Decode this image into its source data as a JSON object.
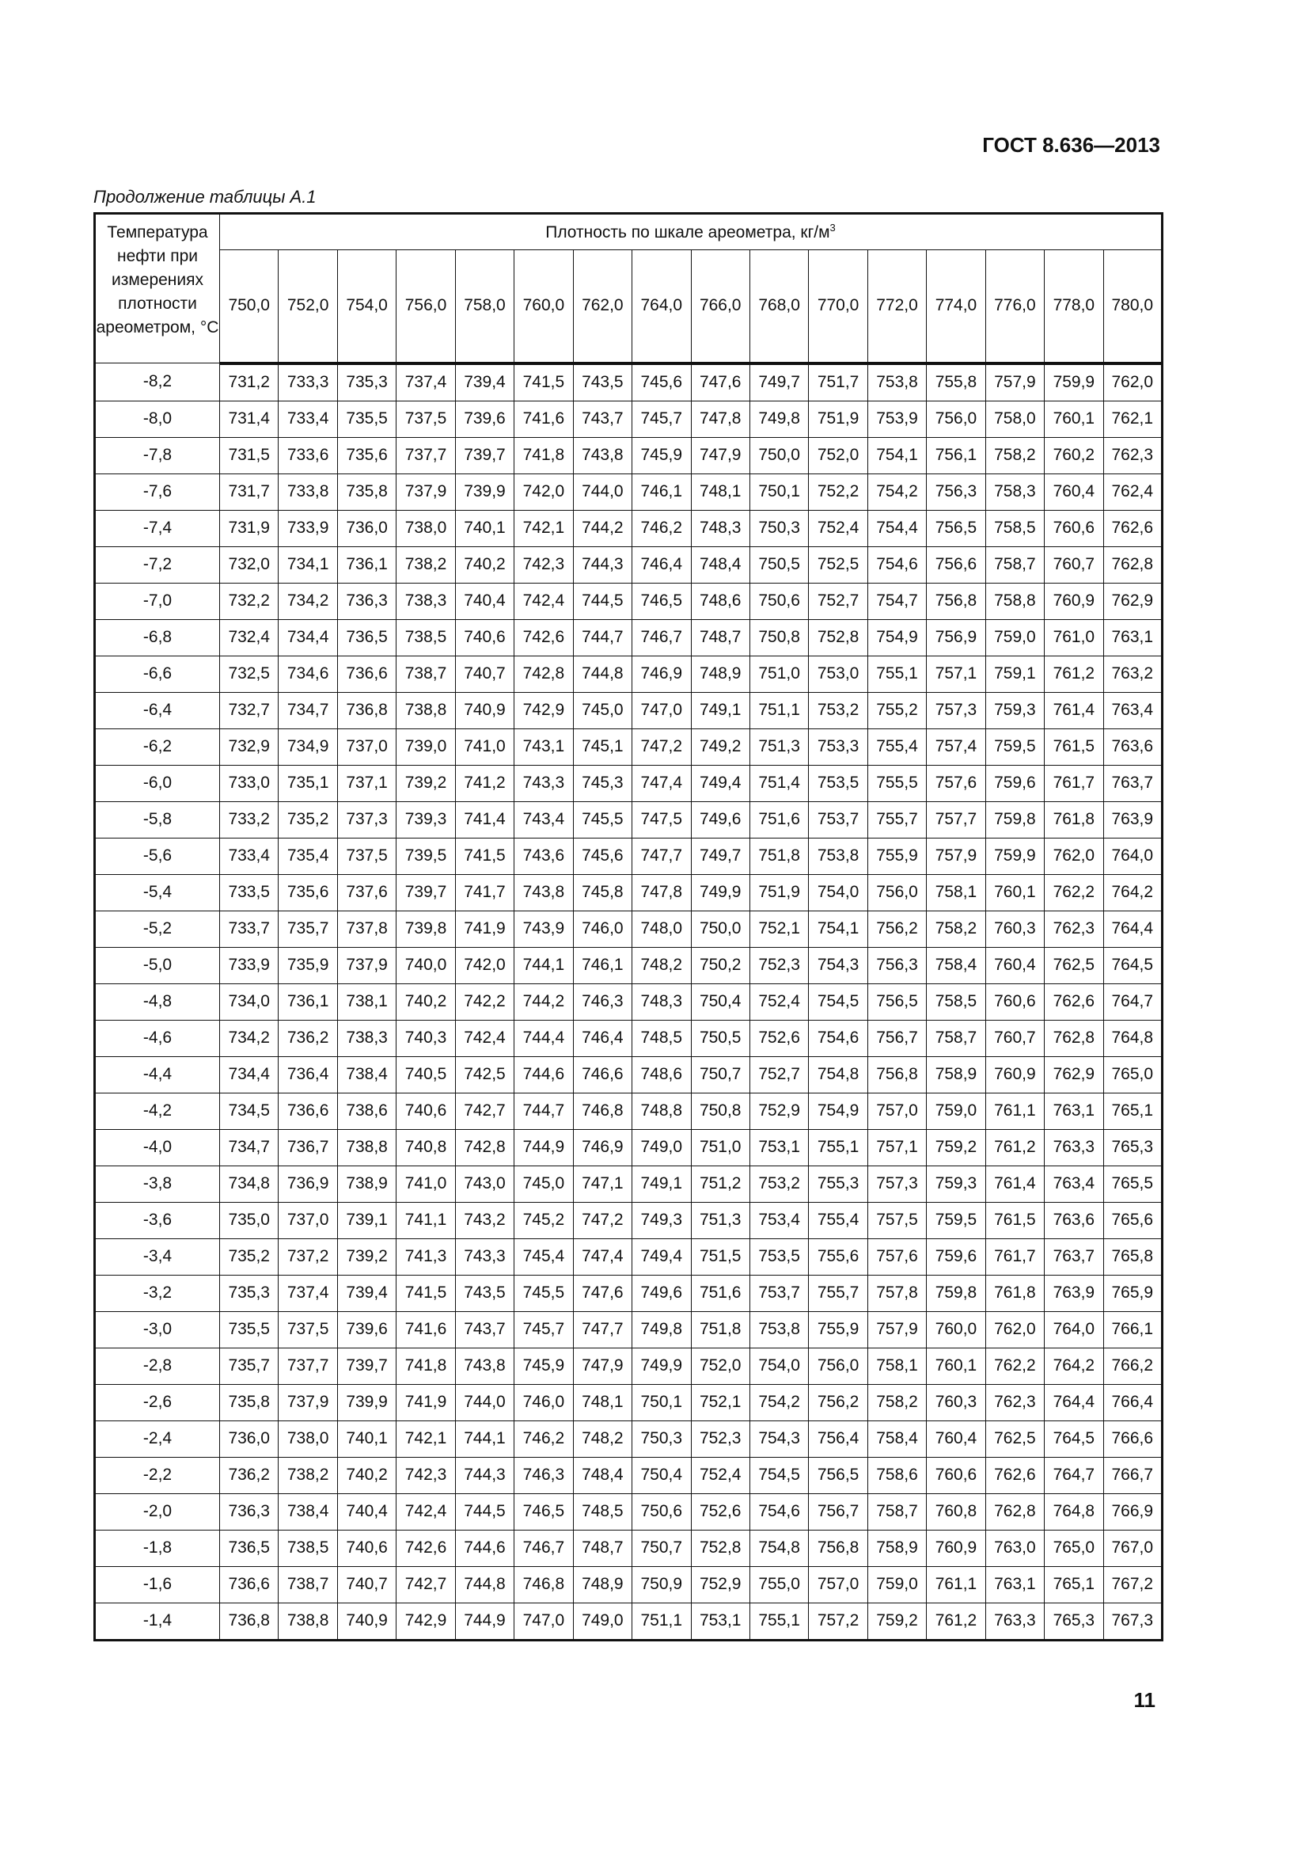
{
  "header": {
    "doc_code": "ГОСТ 8.636—2013"
  },
  "caption": "Продолжение таблицы А.1",
  "table": {
    "row_header": "Температура нефти при измерениях плотности ареометром, °C",
    "group_header": "Плотность по шкале ареометра, кг/м",
    "group_header_sup": "3",
    "columns": [
      "750,0",
      "752,0",
      "754,0",
      "756,0",
      "758,0",
      "760,0",
      "762,0",
      "764,0",
      "766,0",
      "768,0",
      "770,0",
      "772,0",
      "774,0",
      "776,0",
      "778,0",
      "780,0"
    ],
    "rows": [
      {
        "t": "-8,2",
        "v": [
          "731,2",
          "733,3",
          "735,3",
          "737,4",
          "739,4",
          "741,5",
          "743,5",
          "745,6",
          "747,6",
          "749,7",
          "751,7",
          "753,8",
          "755,8",
          "757,9",
          "759,9",
          "762,0"
        ]
      },
      {
        "t": "-8,0",
        "v": [
          "731,4",
          "733,4",
          "735,5",
          "737,5",
          "739,6",
          "741,6",
          "743,7",
          "745,7",
          "747,8",
          "749,8",
          "751,9",
          "753,9",
          "756,0",
          "758,0",
          "760,1",
          "762,1"
        ]
      },
      {
        "t": "-7,8",
        "v": [
          "731,5",
          "733,6",
          "735,6",
          "737,7",
          "739,7",
          "741,8",
          "743,8",
          "745,9",
          "747,9",
          "750,0",
          "752,0",
          "754,1",
          "756,1",
          "758,2",
          "760,2",
          "762,3"
        ]
      },
      {
        "t": "-7,6",
        "v": [
          "731,7",
          "733,8",
          "735,8",
          "737,9",
          "739,9",
          "742,0",
          "744,0",
          "746,1",
          "748,1",
          "750,1",
          "752,2",
          "754,2",
          "756,3",
          "758,3",
          "760,4",
          "762,4"
        ]
      },
      {
        "t": "-7,4",
        "v": [
          "731,9",
          "733,9",
          "736,0",
          "738,0",
          "740,1",
          "742,1",
          "744,2",
          "746,2",
          "748,3",
          "750,3",
          "752,4",
          "754,4",
          "756,5",
          "758,5",
          "760,6",
          "762,6"
        ]
      },
      {
        "t": "-7,2",
        "v": [
          "732,0",
          "734,1",
          "736,1",
          "738,2",
          "740,2",
          "742,3",
          "744,3",
          "746,4",
          "748,4",
          "750,5",
          "752,5",
          "754,6",
          "756,6",
          "758,7",
          "760,7",
          "762,8"
        ]
      },
      {
        "t": "-7,0",
        "v": [
          "732,2",
          "734,2",
          "736,3",
          "738,3",
          "740,4",
          "742,4",
          "744,5",
          "746,5",
          "748,6",
          "750,6",
          "752,7",
          "754,7",
          "756,8",
          "758,8",
          "760,9",
          "762,9"
        ]
      },
      {
        "t": "-6,8",
        "v": [
          "732,4",
          "734,4",
          "736,5",
          "738,5",
          "740,6",
          "742,6",
          "744,7",
          "746,7",
          "748,7",
          "750,8",
          "752,8",
          "754,9",
          "756,9",
          "759,0",
          "761,0",
          "763,1"
        ]
      },
      {
        "t": "-6,6",
        "v": [
          "732,5",
          "734,6",
          "736,6",
          "738,7",
          "740,7",
          "742,8",
          "744,8",
          "746,9",
          "748,9",
          "751,0",
          "753,0",
          "755,1",
          "757,1",
          "759,1",
          "761,2",
          "763,2"
        ]
      },
      {
        "t": "-6,4",
        "v": [
          "732,7",
          "734,7",
          "736,8",
          "738,8",
          "740,9",
          "742,9",
          "745,0",
          "747,0",
          "749,1",
          "751,1",
          "753,2",
          "755,2",
          "757,3",
          "759,3",
          "761,4",
          "763,4"
        ]
      },
      {
        "t": "-6,2",
        "v": [
          "732,9",
          "734,9",
          "737,0",
          "739,0",
          "741,0",
          "743,1",
          "745,1",
          "747,2",
          "749,2",
          "751,3",
          "753,3",
          "755,4",
          "757,4",
          "759,5",
          "761,5",
          "763,6"
        ]
      },
      {
        "t": "-6,0",
        "v": [
          "733,0",
          "735,1",
          "737,1",
          "739,2",
          "741,2",
          "743,3",
          "745,3",
          "747,4",
          "749,4",
          "751,4",
          "753,5",
          "755,5",
          "757,6",
          "759,6",
          "761,7",
          "763,7"
        ]
      },
      {
        "t": "-5,8",
        "v": [
          "733,2",
          "735,2",
          "737,3",
          "739,3",
          "741,4",
          "743,4",
          "745,5",
          "747,5",
          "749,6",
          "751,6",
          "753,7",
          "755,7",
          "757,7",
          "759,8",
          "761,8",
          "763,9"
        ]
      },
      {
        "t": "-5,6",
        "v": [
          "733,4",
          "735,4",
          "737,5",
          "739,5",
          "741,5",
          "743,6",
          "745,6",
          "747,7",
          "749,7",
          "751,8",
          "753,8",
          "755,9",
          "757,9",
          "759,9",
          "762,0",
          "764,0"
        ]
      },
      {
        "t": "-5,4",
        "v": [
          "733,5",
          "735,6",
          "737,6",
          "739,7",
          "741,7",
          "743,8",
          "745,8",
          "747,8",
          "749,9",
          "751,9",
          "754,0",
          "756,0",
          "758,1",
          "760,1",
          "762,2",
          "764,2"
        ]
      },
      {
        "t": "-5,2",
        "v": [
          "733,7",
          "735,7",
          "737,8",
          "739,8",
          "741,9",
          "743,9",
          "746,0",
          "748,0",
          "750,0",
          "752,1",
          "754,1",
          "756,2",
          "758,2",
          "760,3",
          "762,3",
          "764,4"
        ]
      },
      {
        "t": "-5,0",
        "v": [
          "733,9",
          "735,9",
          "737,9",
          "740,0",
          "742,0",
          "744,1",
          "746,1",
          "748,2",
          "750,2",
          "752,3",
          "754,3",
          "756,3",
          "758,4",
          "760,4",
          "762,5",
          "764,5"
        ]
      },
      {
        "t": "-4,8",
        "v": [
          "734,0",
          "736,1",
          "738,1",
          "740,2",
          "742,2",
          "744,2",
          "746,3",
          "748,3",
          "750,4",
          "752,4",
          "754,5",
          "756,5",
          "758,5",
          "760,6",
          "762,6",
          "764,7"
        ]
      },
      {
        "t": "-4,6",
        "v": [
          "734,2",
          "736,2",
          "738,3",
          "740,3",
          "742,4",
          "744,4",
          "746,4",
          "748,5",
          "750,5",
          "752,6",
          "754,6",
          "756,7",
          "758,7",
          "760,7",
          "762,8",
          "764,8"
        ]
      },
      {
        "t": "-4,4",
        "v": [
          "734,4",
          "736,4",
          "738,4",
          "740,5",
          "742,5",
          "744,6",
          "746,6",
          "748,6",
          "750,7",
          "752,7",
          "754,8",
          "756,8",
          "758,9",
          "760,9",
          "762,9",
          "765,0"
        ]
      },
      {
        "t": "-4,2",
        "v": [
          "734,5",
          "736,6",
          "738,6",
          "740,6",
          "742,7",
          "744,7",
          "746,8",
          "748,8",
          "750,8",
          "752,9",
          "754,9",
          "757,0",
          "759,0",
          "761,1",
          "763,1",
          "765,1"
        ]
      },
      {
        "t": "-4,0",
        "v": [
          "734,7",
          "736,7",
          "738,8",
          "740,8",
          "742,8",
          "744,9",
          "746,9",
          "749,0",
          "751,0",
          "753,1",
          "755,1",
          "757,1",
          "759,2",
          "761,2",
          "763,3",
          "765,3"
        ]
      },
      {
        "t": "-3,8",
        "v": [
          "734,8",
          "736,9",
          "738,9",
          "741,0",
          "743,0",
          "745,0",
          "747,1",
          "749,1",
          "751,2",
          "753,2",
          "755,3",
          "757,3",
          "759,3",
          "761,4",
          "763,4",
          "765,5"
        ]
      },
      {
        "t": "-3,6",
        "v": [
          "735,0",
          "737,0",
          "739,1",
          "741,1",
          "743,2",
          "745,2",
          "747,2",
          "749,3",
          "751,3",
          "753,4",
          "755,4",
          "757,5",
          "759,5",
          "761,5",
          "763,6",
          "765,6"
        ]
      },
      {
        "t": "-3,4",
        "v": [
          "735,2",
          "737,2",
          "739,2",
          "741,3",
          "743,3",
          "745,4",
          "747,4",
          "749,4",
          "751,5",
          "753,5",
          "755,6",
          "757,6",
          "759,6",
          "761,7",
          "763,7",
          "765,8"
        ]
      },
      {
        "t": "-3,2",
        "v": [
          "735,3",
          "737,4",
          "739,4",
          "741,5",
          "743,5",
          "745,5",
          "747,6",
          "749,6",
          "751,6",
          "753,7",
          "755,7",
          "757,8",
          "759,8",
          "761,8",
          "763,9",
          "765,9"
        ]
      },
      {
        "t": "-3,0",
        "v": [
          "735,5",
          "737,5",
          "739,6",
          "741,6",
          "743,7",
          "745,7",
          "747,7",
          "749,8",
          "751,8",
          "753,8",
          "755,9",
          "757,9",
          "760,0",
          "762,0",
          "764,0",
          "766,1"
        ]
      },
      {
        "t": "-2,8",
        "v": [
          "735,7",
          "737,7",
          "739,7",
          "741,8",
          "743,8",
          "745,9",
          "747,9",
          "749,9",
          "752,0",
          "754,0",
          "756,0",
          "758,1",
          "760,1",
          "762,2",
          "764,2",
          "766,2"
        ]
      },
      {
        "t": "-2,6",
        "v": [
          "735,8",
          "737,9",
          "739,9",
          "741,9",
          "744,0",
          "746,0",
          "748,1",
          "750,1",
          "752,1",
          "754,2",
          "756,2",
          "758,2",
          "760,3",
          "762,3",
          "764,4",
          "766,4"
        ]
      },
      {
        "t": "-2,4",
        "v": [
          "736,0",
          "738,0",
          "740,1",
          "742,1",
          "744,1",
          "746,2",
          "748,2",
          "750,3",
          "752,3",
          "754,3",
          "756,4",
          "758,4",
          "760,4",
          "762,5",
          "764,5",
          "766,6"
        ]
      },
      {
        "t": "-2,2",
        "v": [
          "736,2",
          "738,2",
          "740,2",
          "742,3",
          "744,3",
          "746,3",
          "748,4",
          "750,4",
          "752,4",
          "754,5",
          "756,5",
          "758,6",
          "760,6",
          "762,6",
          "764,7",
          "766,7"
        ]
      },
      {
        "t": "-2,0",
        "v": [
          "736,3",
          "738,4",
          "740,4",
          "742,4",
          "744,5",
          "746,5",
          "748,5",
          "750,6",
          "752,6",
          "754,6",
          "756,7",
          "758,7",
          "760,8",
          "762,8",
          "764,8",
          "766,9"
        ]
      },
      {
        "t": "-1,8",
        "v": [
          "736,5",
          "738,5",
          "740,6",
          "742,6",
          "744,6",
          "746,7",
          "748,7",
          "750,7",
          "752,8",
          "754,8",
          "756,8",
          "758,9",
          "760,9",
          "763,0",
          "765,0",
          "767,0"
        ]
      },
      {
        "t": "-1,6",
        "v": [
          "736,6",
          "738,7",
          "740,7",
          "742,7",
          "744,8",
          "746,8",
          "748,9",
          "750,9",
          "752,9",
          "755,0",
          "757,0",
          "759,0",
          "761,1",
          "763,1",
          "765,1",
          "767,2"
        ]
      },
      {
        "t": "-1,4",
        "v": [
          "736,8",
          "738,8",
          "740,9",
          "742,9",
          "744,9",
          "747,0",
          "749,0",
          "751,1",
          "753,1",
          "755,1",
          "757,2",
          "759,2",
          "761,2",
          "763,3",
          "765,3",
          "767,3"
        ]
      }
    ]
  },
  "footer": {
    "page_number": "11"
  }
}
